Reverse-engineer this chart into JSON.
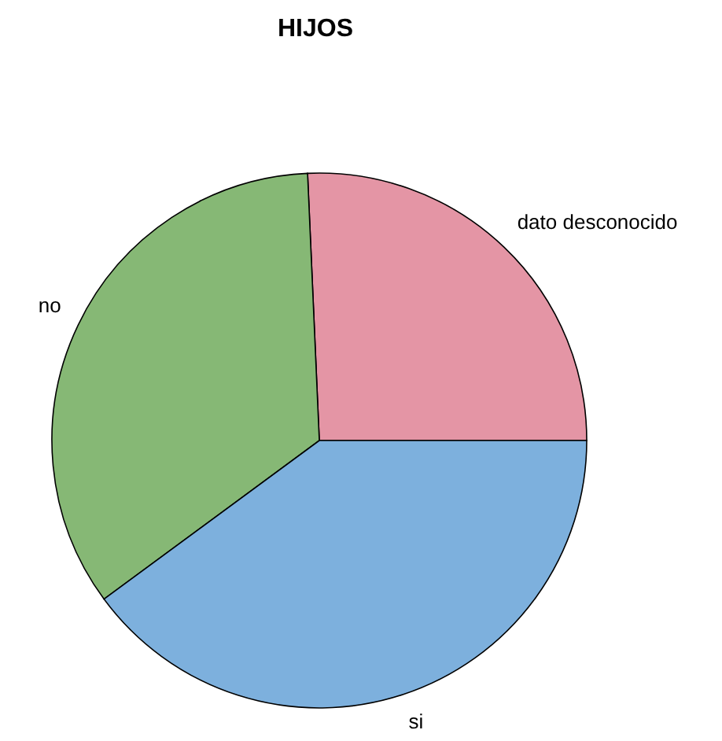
{
  "chart_data": {
    "type": "pie",
    "title": "HIJOS",
    "categories": [
      "dato desconocido",
      "no",
      "si"
    ],
    "values": [
      25.7,
      34.4,
      39.9
    ],
    "colors": [
      "#e495a5",
      "#86b875",
      "#7db0dd"
    ]
  }
}
